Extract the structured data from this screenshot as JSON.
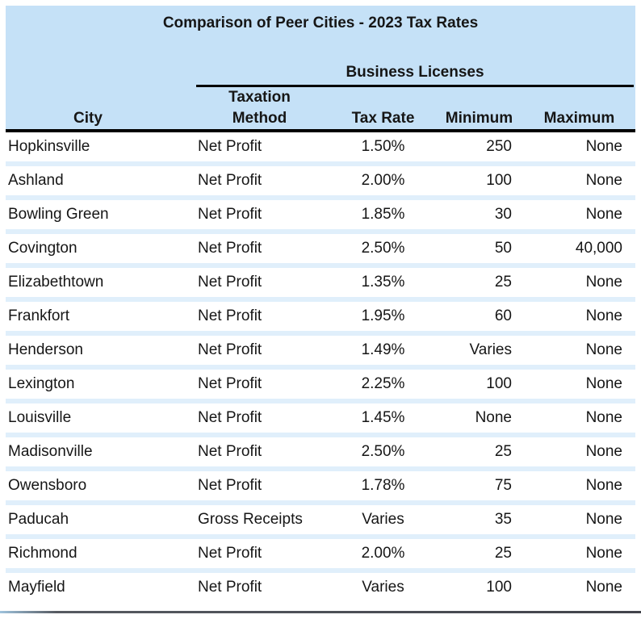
{
  "page": {
    "title": "Comparison of Peer Cities - 2023 Tax Rates"
  },
  "table": {
    "group_header": "Business Licenses",
    "columns": {
      "city": "City",
      "taxation_method": "Taxation Method",
      "tax_rate": "Tax Rate",
      "minimum": "Minimum",
      "maximum": "Maximum"
    },
    "rows": [
      [
        "Hopkinsville",
        "Net Profit",
        "1.50%",
        "250",
        "None"
      ],
      [
        "Ashland",
        "Net Profit",
        "2.00%",
        "100",
        "None"
      ],
      [
        "Bowling Green",
        "Net Profit",
        "1.85%",
        "30",
        "None"
      ],
      [
        "Covington",
        "Net Profit",
        "2.50%",
        "50",
        "40,000"
      ],
      [
        "Elizabethtown",
        "Net Profit",
        "1.35%",
        "25",
        "None"
      ],
      [
        "Frankfort",
        "Net Profit",
        "1.95%",
        "60",
        "None"
      ],
      [
        "Henderson",
        "Net Profit",
        "1.49%",
        "Varies",
        "None"
      ],
      [
        "Lexington",
        "Net Profit",
        "2.25%",
        "100",
        "None"
      ],
      [
        "Louisville",
        "Net Profit",
        "1.45%",
        "None",
        "None"
      ],
      [
        "Madisonville",
        "Net Profit",
        "2.50%",
        "25",
        "None"
      ],
      [
        "Owensboro",
        "Net Profit",
        "1.78%",
        "75",
        "None"
      ],
      [
        "Paducah",
        "Gross Receipts",
        "Varies",
        "35",
        "None"
      ],
      [
        "Richmond",
        "Net Profit",
        "2.00%",
        "25",
        "None"
      ],
      [
        "Mayfield",
        "Net Profit",
        "Varies",
        "100",
        "None"
      ]
    ]
  },
  "colors": {
    "header_bg": "#c5e1f7",
    "row_stripe": "#e0effb",
    "rule": "#000000",
    "bottom_line": "#42444b"
  }
}
